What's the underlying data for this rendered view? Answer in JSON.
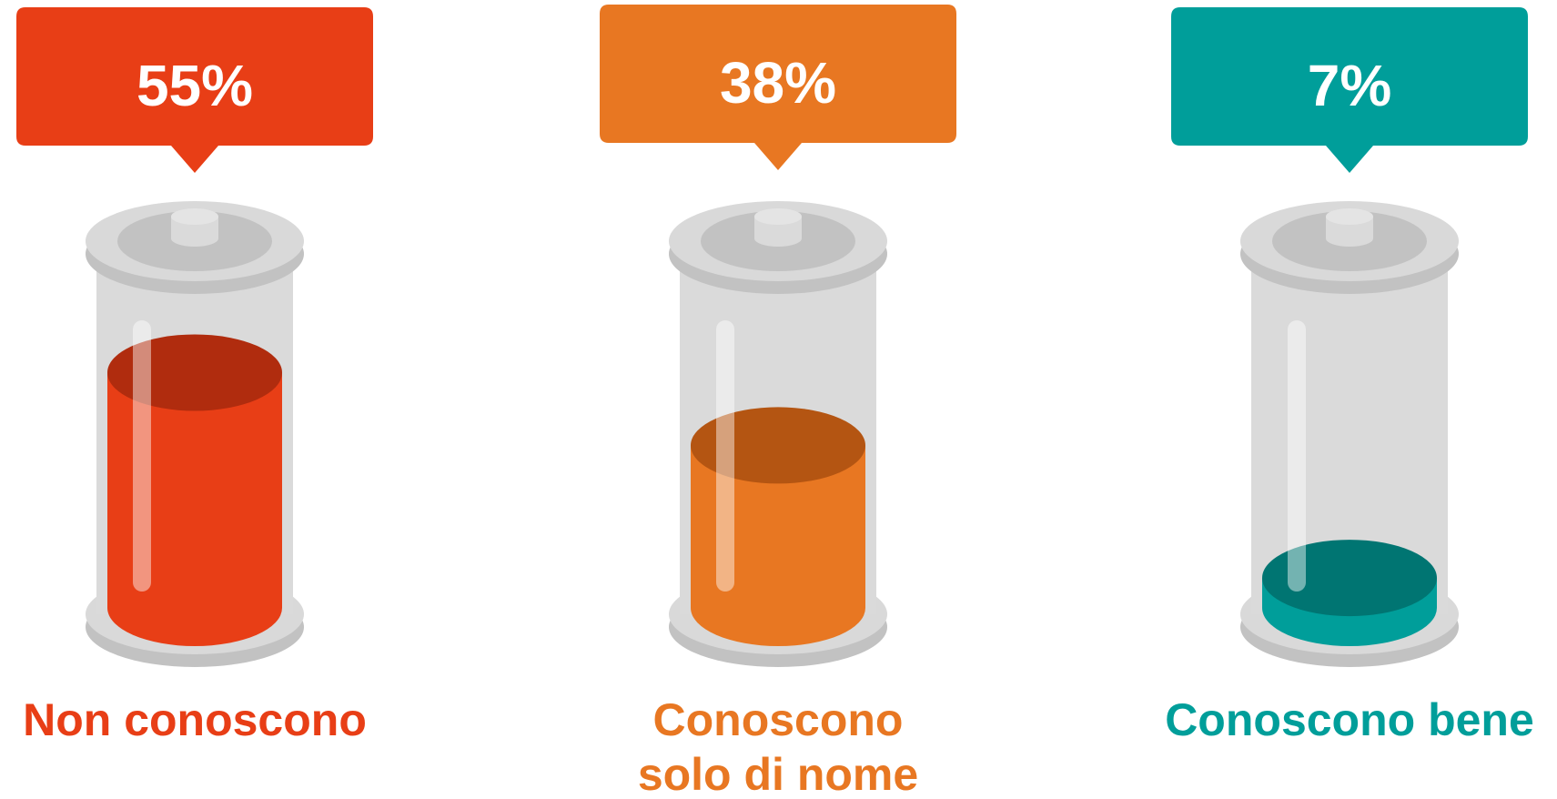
{
  "chart_data": {
    "type": "bar",
    "categories": [
      "Non conoscono",
      "Conoscono solo di nome",
      "Conoscono bene"
    ],
    "category_lines": [
      [
        "Non conoscono"
      ],
      [
        "Conoscono",
        "solo di nome"
      ],
      [
        "Conoscono bene"
      ]
    ],
    "values": [
      55,
      38,
      7
    ],
    "labels": [
      "55%",
      "38%",
      "7%"
    ],
    "unit": "%",
    "ylim": [
      0,
      100
    ],
    "colors": [
      "#E83E16",
      "#E87722",
      "#009E9A"
    ],
    "top_colors": [
      "#B02C0E",
      "#B45512",
      "#007572"
    ],
    "grid": false,
    "legend": "none"
  }
}
